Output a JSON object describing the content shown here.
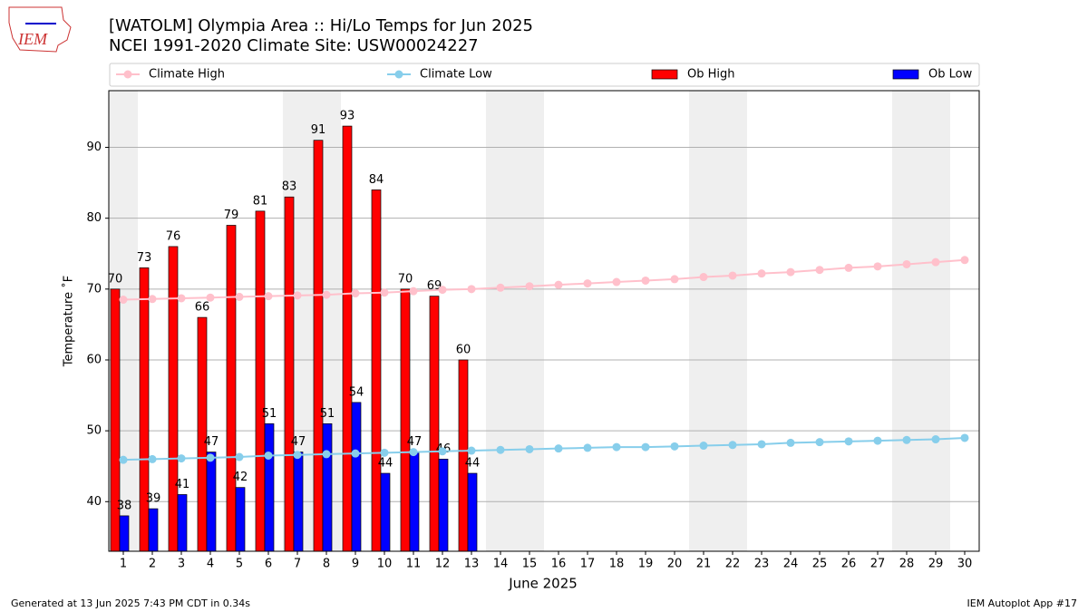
{
  "chart_data": {
    "type": "bar",
    "title": "[WATOLM] Olympia Area :: Hi/Lo Temps for Jun 2025",
    "subtitle": "NCEI 1991-2020 Climate Site: USW00024227",
    "x_label": "June 2025",
    "y_label": "Temperature ˚F",
    "logo": "IEM",
    "footer_left": "Generated at 13 Jun 2025 7:43 PM CDT in 0.34s",
    "footer_right": "IEM Autoplot App #17",
    "categories": [
      "1",
      "2",
      "3",
      "4",
      "5",
      "6",
      "7",
      "8",
      "9",
      "10",
      "11",
      "12",
      "13",
      "14",
      "15",
      "16",
      "17",
      "18",
      "19",
      "20",
      "21",
      "22",
      "23",
      "24",
      "25",
      "26",
      "27",
      "28",
      "29",
      "30"
    ],
    "ylim": [
      33,
      98
    ],
    "yticks": [
      40,
      50,
      60,
      70,
      80,
      90
    ],
    "grid": true,
    "series": [
      {
        "name": "Climate High",
        "kind": "line",
        "color": "#ffc0cb",
        "values": [
          68.5,
          68.6,
          68.7,
          68.8,
          68.9,
          69.0,
          69.1,
          69.2,
          69.4,
          69.5,
          69.7,
          69.9,
          70.0,
          70.2,
          70.4,
          70.6,
          70.8,
          71.0,
          71.2,
          71.4,
          71.7,
          71.9,
          72.2,
          72.4,
          72.7,
          73.0,
          73.2,
          73.5,
          73.8,
          74.1
        ]
      },
      {
        "name": "Climate Low",
        "kind": "line",
        "color": "#87ceeb",
        "values": [
          45.9,
          46.0,
          46.1,
          46.2,
          46.3,
          46.5,
          46.6,
          46.7,
          46.8,
          46.9,
          47.0,
          47.1,
          47.2,
          47.3,
          47.4,
          47.5,
          47.6,
          47.7,
          47.7,
          47.8,
          47.9,
          48.0,
          48.1,
          48.3,
          48.4,
          48.5,
          48.6,
          48.7,
          48.8,
          49.0
        ]
      },
      {
        "name": "Ob High",
        "kind": "bar",
        "color": "#ff0000",
        "values": [
          70,
          73,
          76,
          66,
          79,
          81,
          83,
          91,
          93,
          84,
          70,
          69,
          60,
          null,
          null,
          null,
          null,
          null,
          null,
          null,
          null,
          null,
          null,
          null,
          null,
          null,
          null,
          null,
          null,
          null
        ]
      },
      {
        "name": "Ob Low",
        "kind": "bar",
        "color": "#0000ff",
        "values": [
          38,
          39,
          41,
          47,
          42,
          51,
          47,
          51,
          54,
          44,
          47,
          46,
          44,
          null,
          null,
          null,
          null,
          null,
          null,
          null,
          null,
          null,
          null,
          null,
          null,
          null,
          null,
          null,
          null,
          null
        ]
      }
    ]
  }
}
